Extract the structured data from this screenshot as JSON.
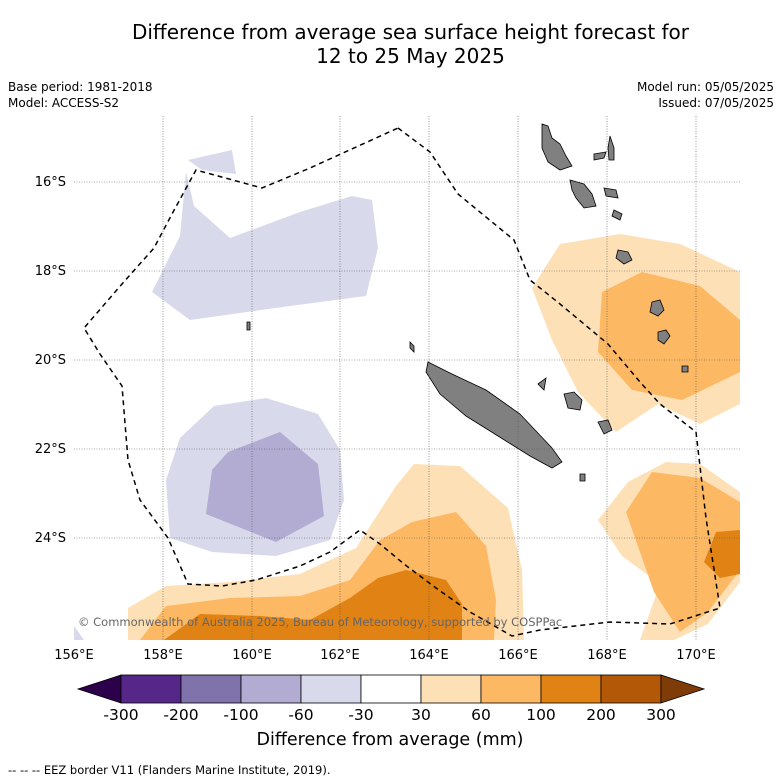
{
  "header": {
    "title_line1": "Difference from average sea surface height forecast for",
    "title_line2": "12 to 25 May 2025",
    "base_period": "Base period: 1981-2018",
    "model": "Model: ACCESS-S2",
    "model_run": "Model run: 05/05/2025",
    "issued": "Issued: 07/05/2025"
  },
  "map": {
    "lon_labels": [
      "156°E",
      "158°E",
      "160°E",
      "162°E",
      "164°E",
      "166°E",
      "168°E",
      "170°E"
    ],
    "lat_labels": [
      "16°S",
      "18°S",
      "20°S",
      "22°S",
      "24°S"
    ],
    "copyright": "© Commonwealth of Australia 2025, Bureau of Meteorology, supported by COSPPac",
    "land_color": "#808080",
    "eez_border_style": "dashed black"
  },
  "colorbar": {
    "title": "Difference from average (mm)",
    "tick_labels": [
      "-300",
      "-200",
      "-100",
      "-60",
      "-30",
      "30",
      "60",
      "100",
      "200",
      "300"
    ],
    "colors": [
      "#2d004b",
      "#542788",
      "#8073ac",
      "#b2abd2",
      "#d8daeb",
      "#ffffff",
      "#fee0b6",
      "#fdb863",
      "#e08214",
      "#b35806",
      "#7f3b08"
    ]
  },
  "footer": {
    "eez_note": "--  --  -- EEZ border V11 (Flanders Marine Institute, 2019)."
  }
}
